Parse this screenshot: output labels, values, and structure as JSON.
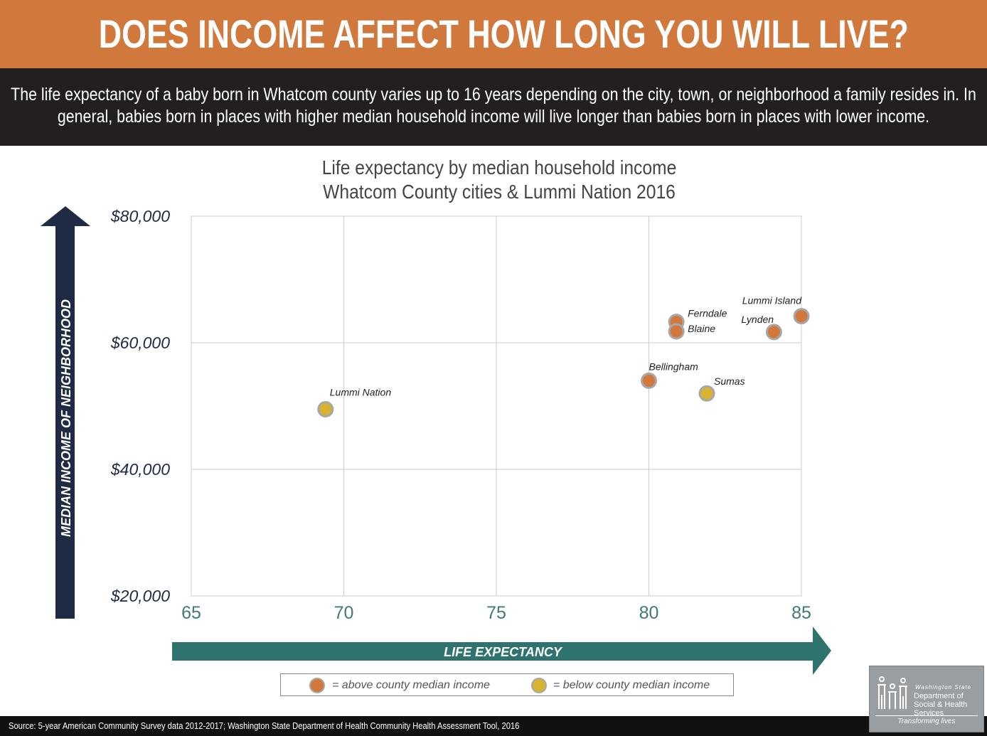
{
  "header": {
    "title": "DOES INCOME AFFECT HOW LONG YOU WILL LIVE?",
    "intro": "The life expectancy of a baby born in Whatcom county varies up to 16 years depending on the city, town, or neighborhood a family resides in. In general, babies born in places with higher median household income will live longer than babies born in places with lower income."
  },
  "colors": {
    "header_band": "#d1783c",
    "intro_band": "#231f20",
    "above_median": "#d1783c",
    "below_median": "#d8b332",
    "y_arrow": "#1f2a44",
    "x_arrow": "#2e736e"
  },
  "chart_data": {
    "type": "scatter",
    "title": "Life expectancy by median household income",
    "subtitle": "Whatcom County cities & Lummi Nation 2016",
    "xlabel": "LIFE EXPECTANCY",
    "ylabel": "MEDIAN INCOME OF NEIGHBORHOOD",
    "xlim": [
      65,
      85
    ],
    "ylim": [
      20000,
      80000
    ],
    "x_ticks": [
      65,
      70,
      75,
      80,
      85
    ],
    "y_ticks": [
      {
        "value": 80000,
        "label": "$80,000"
      },
      {
        "value": 60000,
        "label": "$60,000"
      },
      {
        "value": 40000,
        "label": "$40,000"
      },
      {
        "value": 20000,
        "label": "$20,000"
      }
    ],
    "grid": true,
    "points": [
      {
        "name": "Lummi Nation",
        "x": 69.4,
        "y": 49500,
        "group": "below"
      },
      {
        "name": "Bellingham",
        "x": 80.0,
        "y": 54000,
        "group": "above"
      },
      {
        "name": "Sumas",
        "x": 81.9,
        "y": 52000,
        "group": "below"
      },
      {
        "name": "Ferndale",
        "x": 80.9,
        "y": 63300,
        "group": "above"
      },
      {
        "name": "Blaine",
        "x": 80.9,
        "y": 61800,
        "group": "above"
      },
      {
        "name": "Lynden",
        "x": 84.1,
        "y": 61700,
        "group": "above"
      },
      {
        "name": "Lummi Island",
        "x": 85.0,
        "y": 64200,
        "group": "above"
      }
    ]
  },
  "legend": {
    "above": "= above county median income",
    "below": "= below county median income"
  },
  "footer": {
    "source": "Source: 5-year American Community Survey data 2012-2017; Washington State Department of Health Community Health Assessment Tool, 2016"
  },
  "logo": {
    "state": "Washington State",
    "dept": "Department of Social & Health Services",
    "tagline": "Transforming lives"
  }
}
